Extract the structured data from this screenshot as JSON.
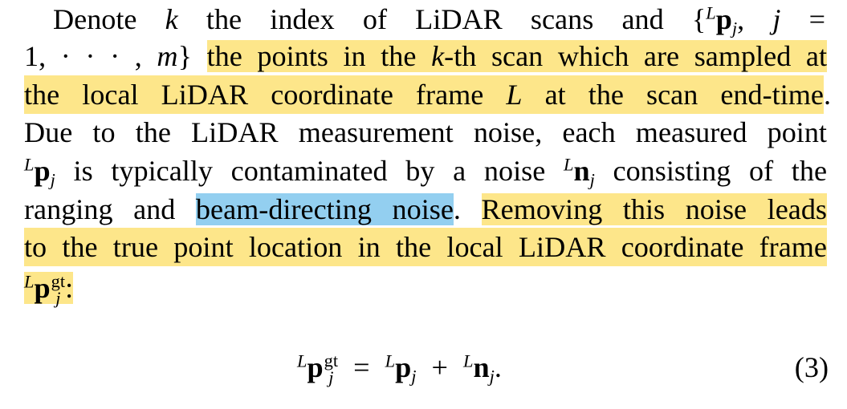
{
  "paragraph": {
    "l1": {
      "a": "Denote",
      "k": "k",
      "b": "the index of LiDAR scans and",
      "set_open": "{",
      "L": "L",
      "p": "p",
      "j": "j",
      "c": ", ",
      "j2": "j",
      "eq": "="
    },
    "l2": {
      "a": "1, · · · , ",
      "m": "m",
      "set_close": "}",
      "hl": "the points in the",
      "k": "k",
      "hl2": "-th scan which are sampled at"
    },
    "l3": {
      "hl": "the local LiDAR coordinate frame",
      "L": "L",
      "hl2": "at the scan end-time",
      "end": "."
    },
    "l4": "Due to the LiDAR measurement noise, each measured point",
    "l5": {
      "L": "L",
      "p": "p",
      "j": "j",
      "a": "is typically contaminated by a noise",
      "L2": "L",
      "n": "n",
      "j2": "j",
      "b": "consisting of the"
    },
    "l6": {
      "a": "ranging and",
      "hl_blue": "beam-directing noise",
      "dot": ".",
      "hl": "Removing this noise leads"
    },
    "l7": "to the true point location in the local LiDAR coordinate frame",
    "l8": {
      "L": "L",
      "p": "p",
      "gt": "gt",
      "j": "j",
      "colon": ":"
    }
  },
  "equation": {
    "L1": "L",
    "p1": "p",
    "gt": "gt",
    "j1": "j",
    "eq": "=",
    "L2": "L",
    "p2": "p",
    "j2": "j",
    "plus": "+",
    "L3": "L",
    "n": "n",
    "j3": "j",
    "end": ".",
    "number": "(3)"
  },
  "colors": {
    "highlight_yellow": "#fde68a",
    "highlight_blue": "#93cff0"
  }
}
